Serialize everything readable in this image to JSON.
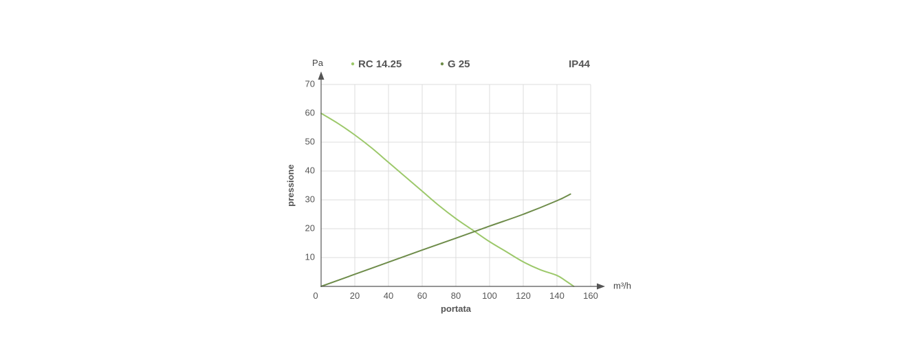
{
  "chart_data": {
    "type": "line",
    "ylabel": "pressione",
    "xlabel": "portata",
    "y_unit": "Pa",
    "x_unit": "m³/h",
    "xlim": [
      0,
      160
    ],
    "ylim": [
      0,
      70
    ],
    "x_ticks": [
      0,
      20,
      40,
      60,
      80,
      100,
      120,
      140,
      160
    ],
    "y_ticks": [
      10,
      20,
      30,
      40,
      50,
      60,
      70
    ],
    "x_tick_labels": [
      "0",
      "20",
      "40",
      "60",
      "80",
      "100",
      "120",
      "140",
      "160"
    ],
    "y_tick_labels": [
      "10",
      "20",
      "30",
      "40",
      "50",
      "60",
      "70"
    ],
    "grid": true,
    "legend_position": "top",
    "annotation": "IP44",
    "series": [
      {
        "name": "RC 14.25",
        "color": "#9cc86a",
        "x": [
          0,
          10,
          20,
          30,
          40,
          50,
          60,
          70,
          80,
          90,
          100,
          110,
          120,
          130,
          140,
          145,
          150
        ],
        "y": [
          60,
          56.5,
          52.5,
          48,
          43,
          38,
          33,
          28,
          23.5,
          19.5,
          15.5,
          12,
          8.5,
          5.8,
          3.8,
          2,
          0
        ]
      },
      {
        "name": "G 25",
        "color": "#6e8c4a",
        "x": [
          0,
          20,
          40,
          60,
          80,
          100,
          120,
          140,
          148
        ],
        "y": [
          0,
          4.2,
          8.4,
          12.6,
          16.7,
          20.9,
          25,
          29.7,
          32
        ]
      }
    ]
  }
}
